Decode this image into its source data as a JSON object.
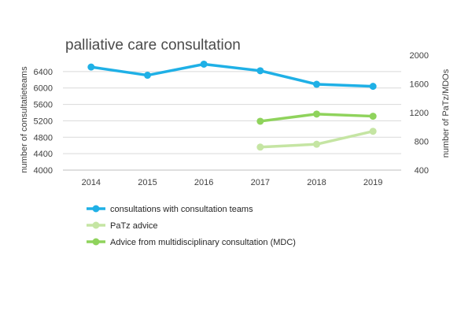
{
  "chart_data": {
    "type": "line",
    "title": "palliative care consultation",
    "x": [
      "2014",
      "2015",
      "2016",
      "2017",
      "2018",
      "2019"
    ],
    "y_left": {
      "label": "number of consultatieteams",
      "ticks": [
        "4000",
        "4400",
        "4800",
        "5200",
        "5600",
        "6000",
        "6400"
      ],
      "range": [
        4000,
        6800
      ]
    },
    "y_right": {
      "label": "number of PaTz/MDOs",
      "ticks": [
        "400",
        "800",
        "1200",
        "1600",
        "2000"
      ],
      "range": [
        400,
        2000
      ]
    },
    "grid": true,
    "legend_position": "bottom",
    "series": [
      {
        "name": "consultations with consultation teams",
        "axis": "left",
        "color": "#1fb0e6",
        "values": [
          6510,
          6310,
          6580,
          6420,
          6090,
          6040
        ]
      },
      {
        "name": "PaTz advice",
        "axis": "right",
        "color": "#c5e5a3",
        "values": [
          null,
          null,
          null,
          720,
          760,
          940
        ]
      },
      {
        "name": "Advice from multidisciplinary consultation (MDC)",
        "axis": "right",
        "color": "#8fd35c",
        "values": [
          null,
          null,
          null,
          1080,
          1180,
          1150
        ]
      }
    ]
  }
}
